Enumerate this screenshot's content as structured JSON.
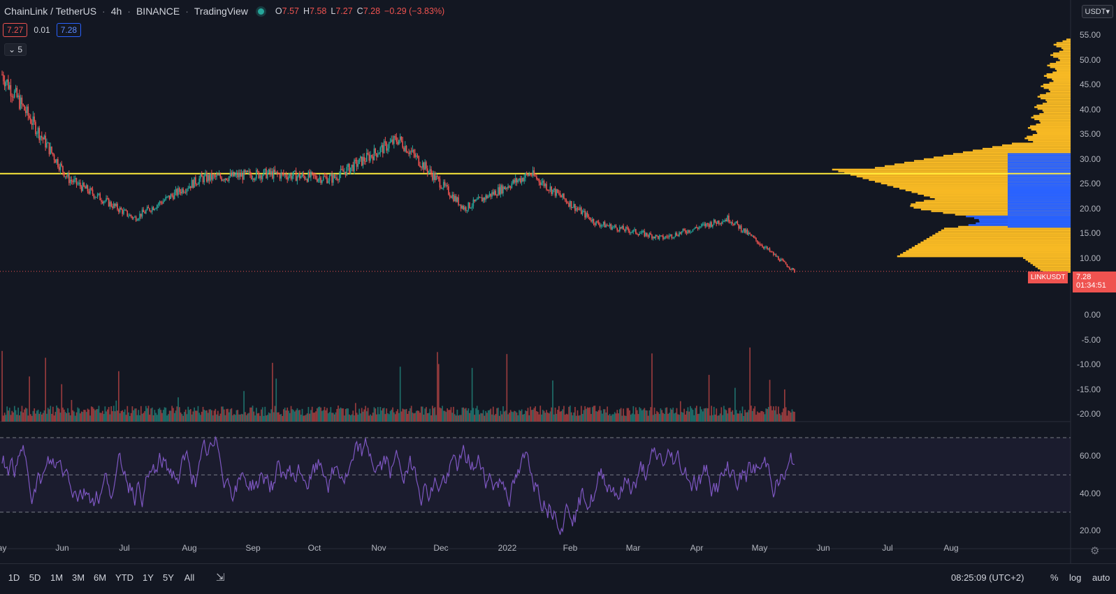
{
  "header": {
    "symbol": "ChainLink / TetherUS",
    "interval": "4h",
    "exchange": "BINANCE",
    "source": "TradingView",
    "ohlc": {
      "o_key": "O",
      "o_val": "7.57",
      "h_key": "H",
      "h_val": "7.58",
      "l_key": "L",
      "l_val": "7.27",
      "c_key": "C",
      "c_val": "7.28",
      "change": "−0.29 (−3.83%)"
    }
  },
  "indicator_row": {
    "bid": "7.27",
    "spread": "0.01",
    "ask": "7.28"
  },
  "collapse_label": "5",
  "currency_label": "USDT",
  "price_axis": [
    "55.00",
    "50.00",
    "45.00",
    "40.00",
    "35.00",
    "30.00",
    "25.00",
    "20.00",
    "15.00",
    "10.00"
  ],
  "volume_axis": [
    "0.00",
    "-5.00",
    "-10.00",
    "-15.00",
    "-20.00"
  ],
  "rsi_axis": [
    "60.00",
    "40.00",
    "20.00"
  ],
  "last_price": {
    "symbol": "LINKUSDT",
    "price": "7.28",
    "countdown": "01:34:51"
  },
  "time_axis": [
    "ay",
    "Jun",
    "Jul",
    "Aug",
    "Sep",
    "Oct",
    "Nov",
    "Dec",
    "2022",
    "Feb",
    "Mar",
    "Apr",
    "May",
    "Jun",
    "Jul",
    "Aug"
  ],
  "ranges": [
    "1D",
    "5D",
    "1M",
    "3M",
    "6M",
    "YTD",
    "1Y",
    "5Y",
    "All"
  ],
  "footer": {
    "clock": "08:25:09 (UTC+2)",
    "percent": "%",
    "log": "log",
    "auto": "auto"
  },
  "colors": {
    "up": "#26a69a",
    "down": "#ef5350",
    "hline": "#ffeb3b",
    "vp_up": "#f7b924",
    "vp_value_area": "#2962ff",
    "rsi": "#7e57c2"
  },
  "chart_data": {
    "type": "candlestick",
    "x_range": [
      "May 2021",
      "May 2022"
    ],
    "ylim": [
      5,
      55
    ],
    "horizontal_line": 27,
    "last": 7.28,
    "price_path": [
      {
        "t": "2021-05",
        "p": 47
      },
      {
        "t": "2021-06",
        "p": 26
      },
      {
        "t": "2021-07",
        "p": 18
      },
      {
        "t": "2021-08",
        "p": 26
      },
      {
        "t": "2021-09",
        "p": 27
      },
      {
        "t": "2021-10",
        "p": 26
      },
      {
        "t": "2021-11",
        "p": 34
      },
      {
        "t": "2021-12",
        "p": 20
      },
      {
        "t": "2022-01",
        "p": 27
      },
      {
        "t": "2022-02",
        "p": 17
      },
      {
        "t": "2022-03",
        "p": 14
      },
      {
        "t": "2022-04",
        "p": 18
      },
      {
        "t": "2022-05",
        "p": 7.28
      }
    ],
    "rsi_levels": [
      70,
      50,
      30
    ]
  }
}
